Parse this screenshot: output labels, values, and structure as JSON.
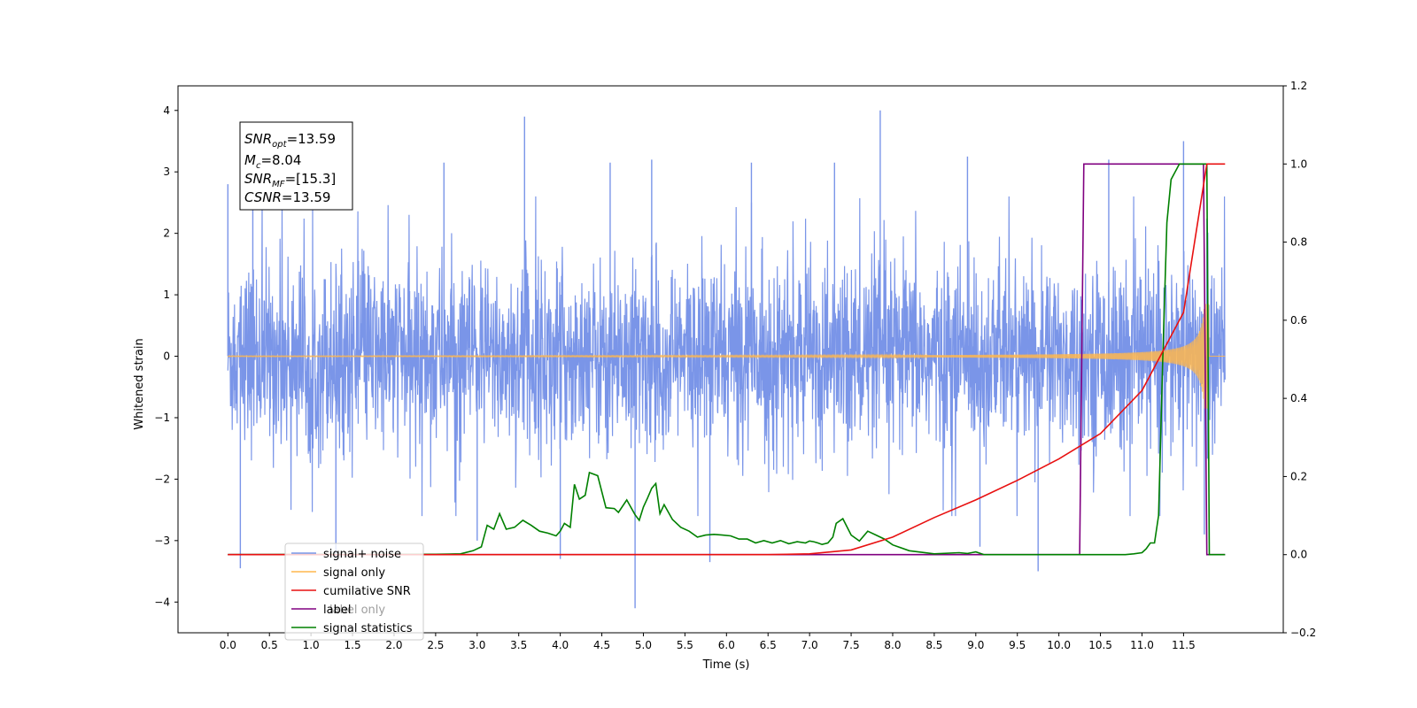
{
  "chart_data": {
    "type": "line",
    "xlabel": "Time (s)",
    "ylabel": "Whitened strain",
    "xlim": [
      -0.6,
      12.7
    ],
    "ylim": [
      -4.5,
      4.4
    ],
    "y2lim": [
      -0.2,
      1.2
    ],
    "grid": false,
    "legend_position": "lower-left",
    "x_ticks": [
      "0.0",
      "0.5",
      "1.0",
      "1.5",
      "2.0",
      "2.5",
      "3.0",
      "3.5",
      "4.0",
      "4.5",
      "5.0",
      "5.5",
      "6.0",
      "6.5",
      "7.0",
      "7.5",
      "8.0",
      "8.5",
      "9.0",
      "9.5",
      "10.0",
      "10.5",
      "11.0",
      "11.5"
    ],
    "y_ticks": [
      "4",
      "3",
      "2",
      "1",
      "0",
      "−1",
      "−2",
      "−3",
      "−4"
    ],
    "y2_ticks": [
      "1.2",
      "1.0",
      "0.8",
      "0.6",
      "0.4",
      "0.2",
      "0.0",
      "−0.2"
    ],
    "annotation": {
      "lines": [
        {
          "base": "SNR",
          "sub": "opt",
          "rest": "=13.59"
        },
        {
          "base": "M",
          "sub": "c",
          "rest": "=8.04"
        },
        {
          "base": "SNR",
          "sub": "MF",
          "rest": "=[15.3]"
        },
        {
          "base": "CSNR",
          "sub": "",
          "rest": "=13.59"
        }
      ]
    },
    "series": [
      {
        "name": "signal+ noise",
        "color": "#7a95e8",
        "axis": "left",
        "x_range": [
          0.0,
          12.0
        ],
        "noise_std": 0.9,
        "spikes": [
          [
            0.15,
            -3.45
          ],
          [
            0.0,
            2.8
          ],
          [
            0.3,
            3.05
          ],
          [
            1.3,
            -3.3
          ],
          [
            2.6,
            3.15
          ],
          [
            3.57,
            3.9
          ],
          [
            3.0,
            -3.0
          ],
          [
            4.0,
            -3.3
          ],
          [
            4.9,
            -4.1
          ],
          [
            4.6,
            3.15
          ],
          [
            5.1,
            3.2
          ],
          [
            5.8,
            -3.35
          ],
          [
            6.3,
            3.15
          ],
          [
            7.3,
            3.15
          ],
          [
            7.85,
            4.0
          ],
          [
            8.9,
            3.25
          ],
          [
            9.75,
            -3.5
          ],
          [
            9.05,
            -3.1
          ],
          [
            10.6,
            3.2
          ],
          [
            11.5,
            3.5
          ],
          [
            11.75,
            -2.9
          ]
        ]
      },
      {
        "name": "signal only",
        "color": "#ffb74d",
        "axis": "left",
        "chirp_end": 11.8,
        "chirp_peak_amplitude": 0.85
      },
      {
        "name": "cumilative SNR",
        "color": "#e81010",
        "axis": "right",
        "x": [
          0.0,
          6.5,
          7.0,
          7.5,
          8.0,
          8.5,
          9.0,
          9.5,
          10.0,
          10.5,
          11.0,
          11.5,
          11.78,
          11.81,
          12.0
        ],
        "y": [
          0.0,
          0.0,
          0.002,
          0.012,
          0.045,
          0.095,
          0.14,
          0.19,
          0.245,
          0.31,
          0.42,
          0.62,
          1.0,
          1.0,
          1.0
        ]
      },
      {
        "name": "label only",
        "color": "#9e9e9e",
        "axis": "right",
        "visible": false
      },
      {
        "name": "label",
        "color": "#800080",
        "axis": "right",
        "x": [
          0.0,
          10.25,
          10.3,
          11.74,
          11.78,
          12.0
        ],
        "y": [
          0.0,
          0.0,
          1.0,
          1.0,
          0.0,
          0.0
        ]
      },
      {
        "name": "signal statistics",
        "color": "#008000",
        "axis": "right",
        "x": [
          0.0,
          2.5,
          2.8,
          2.95,
          3.05,
          3.12,
          3.2,
          3.27,
          3.35,
          3.45,
          3.55,
          3.65,
          3.75,
          3.85,
          3.95,
          4.0,
          4.05,
          4.12,
          4.17,
          4.23,
          4.3,
          4.35,
          4.45,
          4.55,
          4.65,
          4.7,
          4.8,
          4.9,
          4.95,
          5.0,
          5.05,
          5.1,
          5.15,
          5.2,
          5.25,
          5.35,
          5.45,
          5.55,
          5.65,
          5.75,
          5.85,
          5.95,
          6.05,
          6.15,
          6.25,
          6.35,
          6.45,
          6.55,
          6.65,
          6.75,
          6.85,
          6.95,
          7.0,
          7.05,
          7.1,
          7.15,
          7.22,
          7.28,
          7.32,
          7.4,
          7.5,
          7.6,
          7.7,
          7.8,
          7.9,
          8.0,
          8.2,
          8.5,
          8.8,
          8.9,
          8.95,
          9.0,
          9.1,
          9.3,
          10.0,
          10.5,
          10.8,
          10.9,
          11.0,
          11.05,
          11.1,
          11.15,
          11.2,
          11.25,
          11.3,
          11.35,
          11.45,
          11.78,
          11.81,
          12.0
        ],
        "y": [
          0.0,
          0.001,
          0.002,
          0.01,
          0.02,
          0.075,
          0.065,
          0.105,
          0.065,
          0.07,
          0.088,
          0.075,
          0.06,
          0.055,
          0.048,
          0.06,
          0.08,
          0.07,
          0.18,
          0.142,
          0.152,
          0.21,
          0.202,
          0.12,
          0.118,
          0.108,
          0.14,
          0.102,
          0.088,
          0.122,
          0.145,
          0.17,
          0.182,
          0.105,
          0.128,
          0.09,
          0.07,
          0.06,
          0.045,
          0.05,
          0.052,
          0.05,
          0.048,
          0.04,
          0.04,
          0.03,
          0.036,
          0.03,
          0.036,
          0.028,
          0.033,
          0.03,
          0.035,
          0.033,
          0.03,
          0.026,
          0.03,
          0.045,
          0.08,
          0.092,
          0.05,
          0.035,
          0.06,
          0.05,
          0.04,
          0.025,
          0.01,
          0.002,
          0.005,
          0.003,
          0.005,
          0.007,
          0.0,
          0.0,
          0.0,
          0.0,
          0.0,
          0.002,
          0.005,
          0.015,
          0.03,
          0.03,
          0.1,
          0.5,
          0.85,
          0.96,
          1.0,
          1.0,
          0.0,
          0.0
        ]
      }
    ]
  }
}
